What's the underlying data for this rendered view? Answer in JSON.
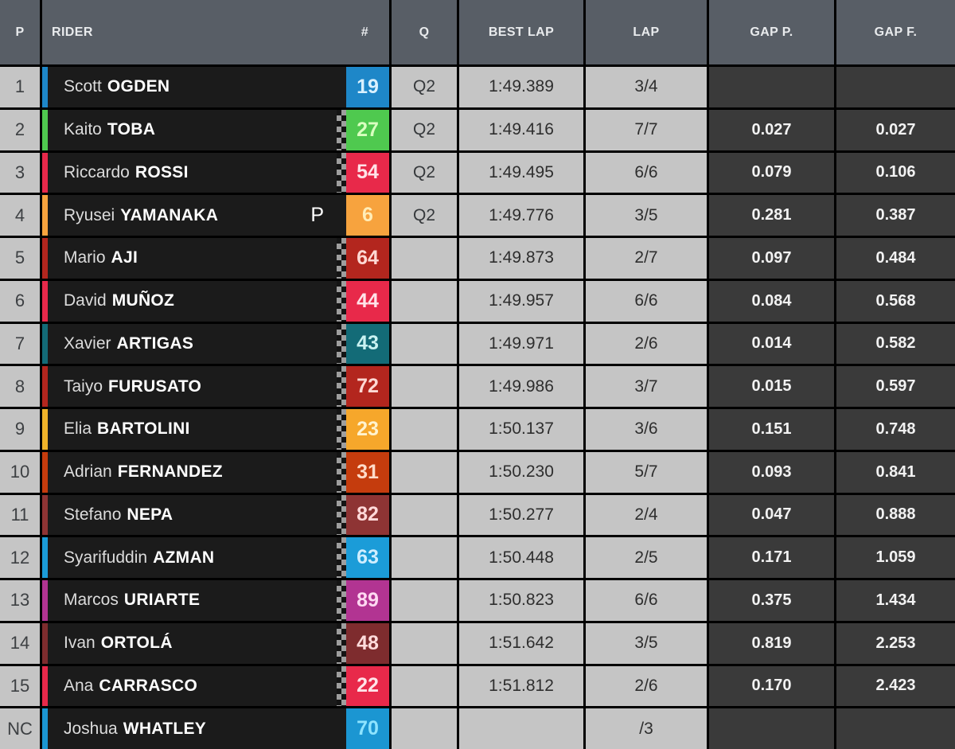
{
  "table": {
    "headers": {
      "p": "P",
      "rider": "RIDER",
      "num": "#",
      "q": "Q",
      "best_lap": "BEST LAP",
      "lap": "LAP",
      "gap_p": "GAP P.",
      "gap_f": "GAP F."
    },
    "rows": [
      {
        "pos": "1",
        "first": "Scott",
        "last": "OGDEN",
        "pit": "",
        "num": "19",
        "num_bg": "#1e87c8",
        "num_color": "#d9f1ff",
        "accent": "#1e87c8",
        "checker": false,
        "q": "Q2",
        "best_lap": "1:49.389",
        "lap": "3/4",
        "gap_p": "",
        "gap_f": ""
      },
      {
        "pos": "2",
        "first": "Kaito",
        "last": "TOBA",
        "pit": "",
        "num": "27",
        "num_bg": "#4fc94f",
        "num_color": "#d9ffc0",
        "accent": "#4fc94f",
        "checker": true,
        "q": "Q2",
        "best_lap": "1:49.416",
        "lap": "7/7",
        "gap_p": "0.027",
        "gap_f": "0.027"
      },
      {
        "pos": "3",
        "first": "Riccardo",
        "last": "ROSSI",
        "pit": "",
        "num": "54",
        "num_bg": "#e8294a",
        "num_color": "#ffe3e8",
        "accent": "#e8294a",
        "checker": true,
        "q": "Q2",
        "best_lap": "1:49.495",
        "lap": "6/6",
        "gap_p": "0.079",
        "gap_f": "0.106"
      },
      {
        "pos": "4",
        "first": "Ryusei",
        "last": "YAMANAKA",
        "pit": "P",
        "num": "6",
        "num_bg": "#f7a33e",
        "num_color": "#ffedb8",
        "accent": "#f7a33e",
        "checker": false,
        "q": "Q2",
        "best_lap": "1:49.776",
        "lap": "3/5",
        "gap_p": "0.281",
        "gap_f": "0.387"
      },
      {
        "pos": "5",
        "first": "Mario",
        "last": "AJI",
        "pit": "",
        "num": "64",
        "num_bg": "#b3261e",
        "num_color": "#ffd9d4",
        "accent": "#b3261e",
        "checker": true,
        "q": "",
        "best_lap": "1:49.873",
        "lap": "2/7",
        "gap_p": "0.097",
        "gap_f": "0.484"
      },
      {
        "pos": "6",
        "first": "David",
        "last": "MUÑOZ",
        "pit": "",
        "num": "44",
        "num_bg": "#e8294a",
        "num_color": "#ffe3e8",
        "accent": "#e8294a",
        "checker": true,
        "q": "",
        "best_lap": "1:49.957",
        "lap": "6/6",
        "gap_p": "0.084",
        "gap_f": "0.568"
      },
      {
        "pos": "7",
        "first": "Xavier",
        "last": "ARTIGAS",
        "pit": "",
        "num": "43",
        "num_bg": "#136b77",
        "num_color": "#c9f2f2",
        "accent": "#136b77",
        "checker": true,
        "q": "",
        "best_lap": "1:49.971",
        "lap": "2/6",
        "gap_p": "0.014",
        "gap_f": "0.582"
      },
      {
        "pos": "8",
        "first": "Taiyo",
        "last": "FURUSATO",
        "pit": "",
        "num": "72",
        "num_bg": "#b3261e",
        "num_color": "#ffd9d4",
        "accent": "#b3261e",
        "checker": true,
        "q": "",
        "best_lap": "1:49.986",
        "lap": "3/7",
        "gap_p": "0.015",
        "gap_f": "0.597"
      },
      {
        "pos": "9",
        "first": "Elia",
        "last": "BARTOLINI",
        "pit": "",
        "num": "23",
        "num_bg": "#f6a72b",
        "num_color": "#fff3cf",
        "accent": "#f0b32a",
        "checker": true,
        "q": "",
        "best_lap": "1:50.137",
        "lap": "3/6",
        "gap_p": "0.151",
        "gap_f": "0.748"
      },
      {
        "pos": "10",
        "first": "Adrian",
        "last": "FERNANDEZ",
        "pit": "",
        "num": "31",
        "num_bg": "#c53c0d",
        "num_color": "#ffdcc9",
        "accent": "#c53c0d",
        "checker": true,
        "q": "",
        "best_lap": "1:50.230",
        "lap": "5/7",
        "gap_p": "0.093",
        "gap_f": "0.841"
      },
      {
        "pos": "11",
        "first": "Stefano",
        "last": "NEPA",
        "pit": "",
        "num": "82",
        "num_bg": "#8e3434",
        "num_color": "#ffd9d9",
        "accent": "#8e3434",
        "checker": true,
        "q": "",
        "best_lap": "1:50.277",
        "lap": "2/4",
        "gap_p": "0.047",
        "gap_f": "0.888"
      },
      {
        "pos": "12",
        "first": "Syarifuddin",
        "last": "AZMAN",
        "pit": "",
        "num": "63",
        "num_bg": "#1b9cd8",
        "num_color": "#cfeeff",
        "accent": "#1b9cd8",
        "checker": true,
        "q": "",
        "best_lap": "1:50.448",
        "lap": "2/5",
        "gap_p": "0.171",
        "gap_f": "1.059"
      },
      {
        "pos": "13",
        "first": "Marcos",
        "last": "URIARTE",
        "pit": "",
        "num": "89",
        "num_bg": "#b23492",
        "num_color": "#ffd9f2",
        "accent": "#b23492",
        "checker": true,
        "q": "",
        "best_lap": "1:50.823",
        "lap": "6/6",
        "gap_p": "0.375",
        "gap_f": "1.434"
      },
      {
        "pos": "14",
        "first": "Ivan",
        "last": "ORTOLÁ",
        "pit": "",
        "num": "48",
        "num_bg": "#7e2c2e",
        "num_color": "#ffdbdb",
        "accent": "#7e2c2e",
        "checker": true,
        "q": "",
        "best_lap": "1:51.642",
        "lap": "3/5",
        "gap_p": "0.819",
        "gap_f": "2.253"
      },
      {
        "pos": "15",
        "first": "Ana",
        "last": "CARRASCO",
        "pit": "",
        "num": "22",
        "num_bg": "#e8294a",
        "num_color": "#ffe3e8",
        "accent": "#e8294a",
        "checker": true,
        "q": "",
        "best_lap": "1:51.812",
        "lap": "2/6",
        "gap_p": "0.170",
        "gap_f": "2.423"
      },
      {
        "pos": "NC",
        "first": "Joshua",
        "last": "WHATLEY",
        "pit": "",
        "num": "70",
        "num_bg": "#1b96d2",
        "num_color": "#8ee4ff",
        "accent": "#1b96d2",
        "checker": false,
        "q": "",
        "best_lap": "",
        "lap": "/3",
        "gap_p": "",
        "gap_f": ""
      }
    ]
  }
}
